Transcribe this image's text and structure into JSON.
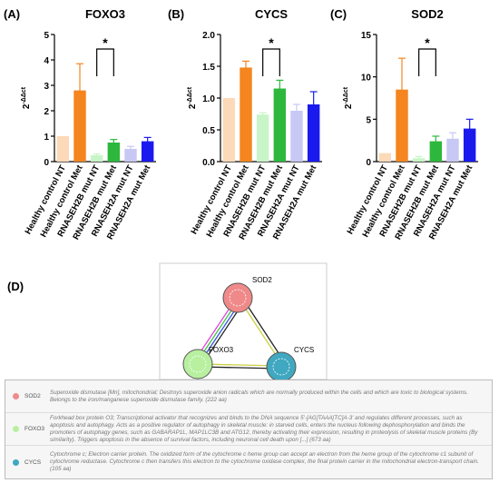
{
  "chart_data": [
    {
      "type": "bar",
      "panel": "(A)",
      "title": "FOXO3",
      "ylabel": [
        "2",
        "-ΔΔct"
      ],
      "categories": [
        "Healthy control NT",
        "Healthy control Met",
        "RNASEH2B mut NT",
        "RNASEH2B mut Met",
        "RNASEH2A mut NT",
        "RNASEH2A mut Met"
      ],
      "values": [
        1.0,
        2.8,
        0.25,
        0.75,
        0.5,
        0.8
      ],
      "errors": [
        null,
        1.05,
        0.05,
        0.12,
        0.1,
        0.15
      ],
      "colors": [
        "#fcd9b8",
        "#f5851f",
        "#c8f5c8",
        "#2db83d",
        "#c8c8f5",
        "#1a1aee"
      ],
      "ylim": [
        0,
        5
      ],
      "yticks": [
        0,
        1,
        2,
        3,
        4,
        5
      ],
      "significance": [
        {
          "from": 2,
          "to": 3,
          "label": "*"
        }
      ]
    },
    {
      "type": "bar",
      "panel": "(B)",
      "title": "CYCS",
      "ylabel": [
        "2",
        "-ΔΔct"
      ],
      "categories": [
        "Healthy control NT",
        "Healthy control Met",
        "RNASEH2B mut NT",
        "RNASEH2B mut Met",
        "RNASEH2A mut NT",
        "RNASEH2A mut Met"
      ],
      "values": [
        1.0,
        1.48,
        0.74,
        1.15,
        0.8,
        0.9
      ],
      "errors": [
        null,
        0.1,
        0.03,
        0.13,
        0.1,
        0.2
      ],
      "colors": [
        "#fcd9b8",
        "#f5851f",
        "#c8f5c8",
        "#2db83d",
        "#c8c8f5",
        "#1a1aee"
      ],
      "ylim": [
        0,
        2
      ],
      "yticks": [
        {
          "value": 0,
          "label": "0.0"
        },
        {
          "value": 0.5,
          "label": "0.5"
        },
        {
          "value": 1,
          "label": "1.0"
        },
        {
          "value": 1.5,
          "label": "1.5"
        },
        {
          "value": 2,
          "label": "2.0"
        }
      ],
      "significance": [
        {
          "from": 2,
          "to": 3,
          "label": "*"
        }
      ]
    },
    {
      "type": "bar",
      "panel": "(C)",
      "title": "SOD2",
      "ylabel": [
        "2",
        "-ΔΔct"
      ],
      "categories": [
        "Healthy control NT",
        "Healthy control Met",
        "RNASEH2B mut NT",
        "RNASEH2B mut Met",
        "RNASEH2A mut NT",
        "RNASEH2A mut Met"
      ],
      "values": [
        1.0,
        8.5,
        0.4,
        2.4,
        2.7,
        3.9
      ],
      "errors": [
        null,
        3.7,
        0.2,
        0.6,
        0.7,
        1.1
      ],
      "colors": [
        "#fcd9b8",
        "#f5851f",
        "#c8f5c8",
        "#2db83d",
        "#c8c8f5",
        "#1a1aee"
      ],
      "ylim": [
        0,
        15
      ],
      "yticks": [
        0,
        5,
        10,
        15
      ],
      "significance": [
        {
          "from": 2,
          "to": 3,
          "label": "*"
        }
      ]
    }
  ],
  "network": {
    "panel": "(D)",
    "nodes": [
      {
        "label": "SOD2",
        "color": "#f08a8a",
        "description": "Superoxide dismutase [Mn], mitochondrial; Destroys superoxide anion radicals which are normally produced within the cells and which are toxic to biological systems. Belongs to the iron/manganese superoxide dismutase family. (222 aa)"
      },
      {
        "label": "FOXO3",
        "color": "#b8f0a0",
        "description": "Forkhead box protein O3; Transcriptional activator that recognizes and binds to the DNA sequence 5'-[AG]TAAA[TC]A-3' and regulates different processes, such as apoptosis and autophagy. Acts as a positive regulator of autophagy in skeletal muscle: in starved cells, enters the nucleus following dephosphorylation and binds the promoters of autophagy genes, such as GABARAP1L, MAP1LC3B and ATG12, thereby activating their expression, resulting in proteolysis of skeletal muscle proteins (By similarity). Triggers apoptosis in the absence of survival factors, including neuronal cell death upon [...] (673 aa)"
      },
      {
        "label": "CYCS",
        "color": "#40a8c0",
        "description": "Cytochrome c; Electron carrier protein. The oxidized form of the cytochrome c heme group can accept an electron from the heme group of the cytochrome c1 subunit of cytochrome reductase. Cytochrome c then transfers this electron to the cytochrome oxidase complex, the final protein carrier in the mitochondrial electron-transport chain. (105 aa)"
      }
    ]
  }
}
